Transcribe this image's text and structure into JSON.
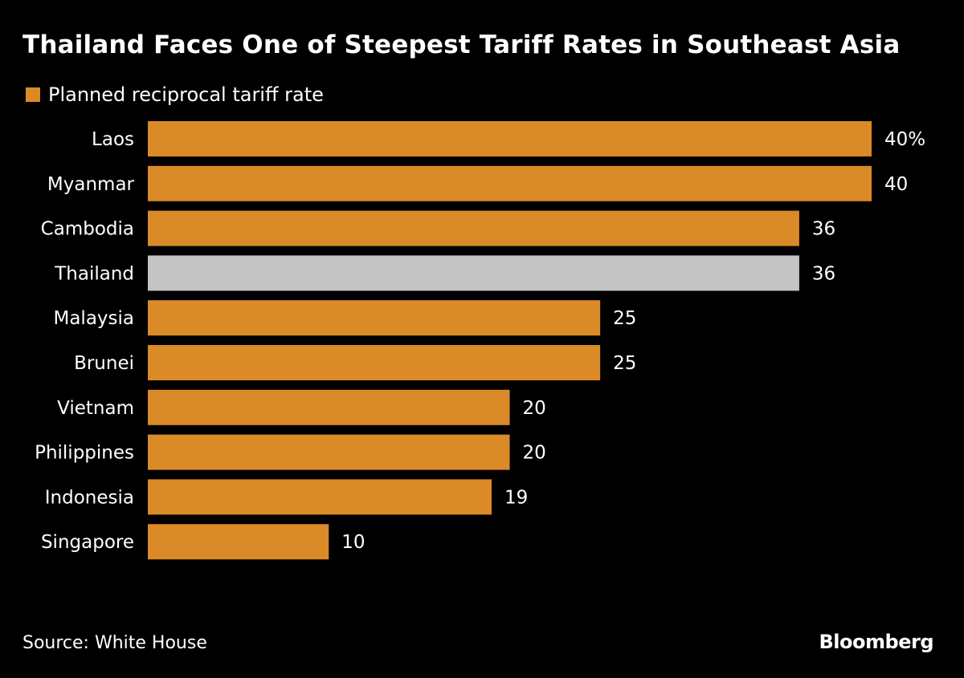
{
  "chart_data": {
    "type": "bar",
    "orientation": "horizontal",
    "title": "Thailand Faces One of Steepest Tariff Rates in Southeast Asia",
    "xlabel": "",
    "ylabel": "",
    "categories": [
      "Laos",
      "Myanmar",
      "Cambodia",
      "Thailand",
      "Malaysia",
      "Brunei",
      "Vietnam",
      "Philippines",
      "Indonesia",
      "Singapore"
    ],
    "series": [
      {
        "name": "Planned reciprocal tariff rate",
        "values": [
          40,
          40,
          36,
          36,
          25,
          25,
          20,
          20,
          19,
          10
        ],
        "unit": "%"
      }
    ],
    "data_labels": [
      "40%",
      "40",
      "36",
      "36",
      "25",
      "25",
      "20",
      "20",
      "19",
      "10"
    ],
    "highlighted_category": "Thailand",
    "colors": {
      "default": "#DA8A26",
      "highlight": "#C4C4C4",
      "background": "#000000",
      "text": "#FFFFFF"
    },
    "xlim": [
      0,
      40
    ],
    "grid": false,
    "legend": {
      "position": "top-left",
      "entries": [
        "Planned reciprocal tariff rate"
      ]
    }
  },
  "footer": {
    "source": "Source: White House",
    "brand": "Bloomberg"
  }
}
